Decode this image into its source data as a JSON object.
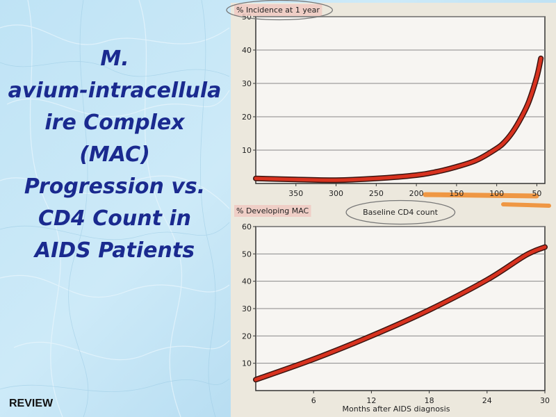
{
  "slide": {
    "title_lines": [
      "M.",
      "avium-intracellula",
      "ire Complex",
      "(MAC)",
      "Progression vs.",
      "CD4 Count in",
      "AIDS Patients"
    ],
    "footer": "REVIEW"
  },
  "colors": {
    "title": "#1a2a8f",
    "series": "#d8321f",
    "panel": "#f7f5f2",
    "highlight": "#f08a2a"
  },
  "chart_data": [
    {
      "type": "line",
      "ylabel": "% Incidence at 1 year",
      "xlabel": "Baseline CD4 count",
      "x_ticks": [
        350,
        300,
        250,
        200,
        150,
        100,
        50
      ],
      "y_ticks": [
        10,
        20,
        30,
        40,
        50
      ],
      "xlim": [
        400,
        40
      ],
      "ylim": [
        0,
        50
      ],
      "grid": true,
      "series": [
        {
          "x": [
            400,
            350,
            300,
            250,
            200,
            175,
            150,
            125,
            100,
            90,
            80,
            70,
            60,
            50,
            45
          ],
          "y": [
            1.5,
            1.2,
            1.0,
            1.5,
            2.5,
            3.5,
            5.0,
            7.0,
            10.5,
            12.5,
            15.5,
            19.5,
            24.5,
            32.0,
            37.5
          ]
        }
      ]
    },
    {
      "type": "line",
      "ylabel": "% Developing MAC",
      "xlabel": "Months after AIDS diagnosis",
      "x_ticks": [
        6,
        12,
        18,
        24,
        30
      ],
      "y_ticks": [
        10,
        20,
        30,
        40,
        50,
        60
      ],
      "xlim": [
        0,
        30
      ],
      "ylim": [
        0,
        60
      ],
      "grid": true,
      "series": [
        {
          "x": [
            0,
            6,
            12,
            18,
            24,
            28,
            30
          ],
          "y": [
            4,
            11.5,
            20,
            29.5,
            40.5,
            49.5,
            52.5
          ]
        }
      ]
    }
  ]
}
